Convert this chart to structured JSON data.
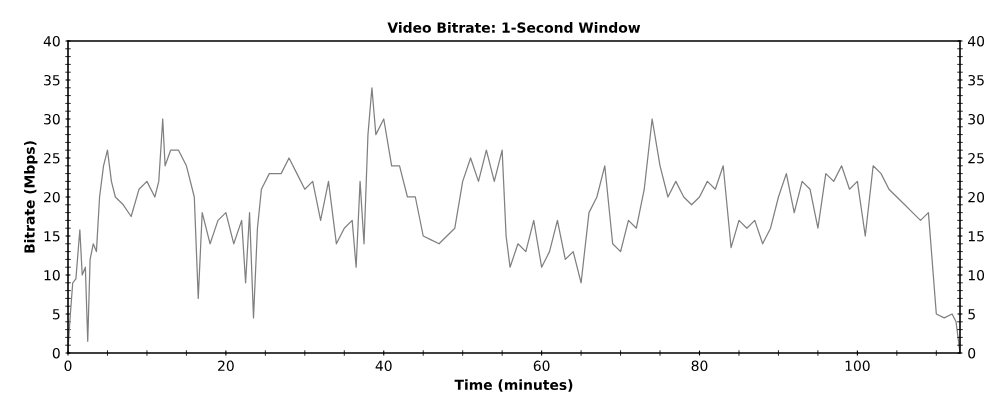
{
  "chart_data": {
    "type": "line",
    "title": "Video Bitrate: 1-Second Window",
    "xlabel": "Time (minutes)",
    "ylabel": "Bitrate (Mbps)",
    "series": [
      {
        "color": "#808080",
        "x": [
          0,
          0.3,
          0.6,
          1.0,
          1.5,
          1.8,
          2.2,
          2.5,
          2.8,
          3.2,
          3.6,
          4.0,
          4.5,
          5.0,
          5.5,
          6,
          7,
          8,
          9,
          10,
          11,
          11.5,
          12,
          12.3,
          13,
          14,
          15,
          16,
          16.5,
          17,
          18,
          19,
          20,
          21,
          22,
          22.5,
          23,
          23.5,
          24,
          24.5,
          25.5,
          27,
          28,
          29,
          30,
          31,
          32,
          33,
          34,
          35,
          36,
          36.5,
          37,
          37.5,
          38,
          38.5,
          39,
          40,
          41,
          42,
          43,
          44,
          45,
          46,
          47,
          48,
          49,
          50,
          51,
          52,
          53,
          54,
          55,
          55.5,
          56,
          57,
          58,
          59,
          60,
          61,
          62,
          63,
          64,
          65,
          66,
          67,
          68,
          69,
          70,
          71,
          72,
          73,
          74,
          75,
          76,
          77,
          78,
          79,
          80,
          81,
          82,
          83,
          84,
          85,
          86,
          87,
          88,
          89,
          90,
          91,
          92,
          93,
          94,
          95,
          96,
          97,
          98,
          99,
          100,
          101,
          102,
          103,
          104,
          105,
          106,
          107,
          108,
          109,
          110,
          111,
          112,
          112.5,
          113
        ],
        "values": [
          0.5,
          5,
          9,
          9.5,
          15.8,
          10,
          11,
          1.5,
          12,
          14,
          13,
          20,
          24,
          26,
          22,
          20,
          19,
          17.5,
          21,
          22,
          20,
          22,
          30,
          24,
          26,
          26,
          24,
          20,
          7,
          18,
          14,
          17,
          18,
          14,
          17,
          9,
          18,
          4.5,
          16,
          21,
          23,
          23,
          25,
          23,
          21,
          22,
          17,
          22,
          14,
          16,
          17,
          11,
          22,
          14,
          28,
          34,
          28,
          30,
          24,
          24,
          20,
          20,
          15,
          14.5,
          14,
          15,
          16,
          22,
          25,
          22,
          26,
          22,
          26,
          15,
          11,
          14,
          13,
          17,
          11,
          13,
          17,
          12,
          13,
          9,
          18,
          20,
          24,
          14,
          13,
          17,
          16,
          21,
          30,
          24,
          20,
          22,
          20,
          19,
          20,
          22,
          21,
          24,
          13.5,
          17,
          16,
          17,
          14,
          16,
          20,
          23,
          18,
          22,
          21,
          16,
          23,
          22,
          24,
          21,
          22,
          15,
          24,
          23,
          21,
          20,
          19,
          18,
          17,
          18,
          5,
          4.5,
          5,
          4,
          0
        ]
      }
    ],
    "xlim": [
      0,
      113
    ],
    "xticks": [
      0,
      20,
      40,
      60,
      80,
      100
    ],
    "ylim": [
      0,
      40
    ],
    "yticks": [
      0,
      5,
      10,
      15,
      20,
      25,
      30,
      35,
      40
    ],
    "y2lim": [
      0,
      40
    ],
    "y2ticks": [
      0,
      5,
      10,
      15,
      20,
      25,
      30,
      35,
      40
    ],
    "grid": false,
    "legend": false,
    "marker": "none",
    "line_style": "solid"
  }
}
